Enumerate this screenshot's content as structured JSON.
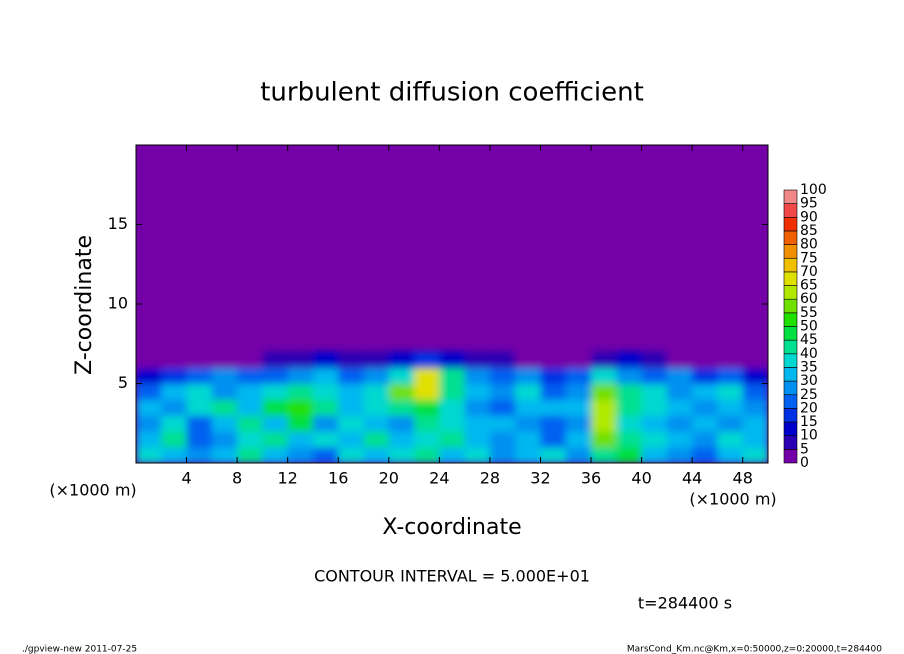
{
  "chart_data": {
    "type": "contour",
    "title": "turbulent diffusion coefficient",
    "xlabel": "X-coordinate",
    "ylabel": "Z-coordinate",
    "xunit": "(×1000 m)",
    "yunit": "(×1000 m)",
    "xlim": [
      0,
      50
    ],
    "ylim": [
      0,
      20
    ],
    "xticks": [
      4,
      8,
      12,
      16,
      20,
      24,
      28,
      32,
      36,
      40,
      44,
      48
    ],
    "yticks": [
      5,
      10,
      15
    ],
    "background": "#7400a8",
    "x": [
      1,
      3,
      5,
      7,
      9,
      11,
      13,
      15,
      17,
      19,
      21,
      23,
      25,
      27,
      29,
      31,
      33,
      35,
      37,
      39,
      41,
      43,
      45,
      47,
      49
    ],
    "z": [
      0.5,
      1.5,
      2.5,
      3.5,
      4.5,
      5.5,
      6.5
    ],
    "values": [
      [
        35,
        30,
        25,
        30,
        40,
        30,
        25,
        20,
        35,
        30,
        35,
        40,
        30,
        35,
        25,
        30,
        35,
        25,
        40,
        45,
        30,
        25,
        20,
        30,
        35
      ],
      [
        30,
        40,
        20,
        25,
        35,
        40,
        30,
        35,
        30,
        40,
        30,
        35,
        40,
        30,
        25,
        30,
        20,
        30,
        55,
        40,
        35,
        30,
        25,
        35,
        30
      ],
      [
        25,
        35,
        20,
        30,
        40,
        30,
        45,
        25,
        35,
        30,
        25,
        40,
        35,
        30,
        30,
        25,
        20,
        25,
        60,
        35,
        30,
        25,
        30,
        25,
        30
      ],
      [
        30,
        25,
        35,
        40,
        30,
        45,
        50,
        40,
        30,
        35,
        40,
        45,
        35,
        25,
        20,
        30,
        30,
        30,
        60,
        40,
        35,
        30,
        25,
        30,
        25
      ],
      [
        20,
        30,
        35,
        25,
        30,
        35,
        40,
        35,
        30,
        35,
        55,
        65,
        40,
        30,
        25,
        35,
        20,
        25,
        55,
        40,
        35,
        25,
        30,
        35,
        20
      ],
      [
        10,
        15,
        20,
        25,
        20,
        20,
        25,
        30,
        20,
        25,
        35,
        65,
        40,
        25,
        20,
        25,
        15,
        20,
        35,
        25,
        20,
        25,
        15,
        20,
        10
      ],
      [
        0,
        0,
        0,
        0,
        0,
        5,
        5,
        10,
        5,
        5,
        10,
        15,
        10,
        5,
        5,
        0,
        0,
        0,
        5,
        10,
        5,
        0,
        0,
        0,
        0
      ]
    ],
    "colorbar": {
      "levels": [
        0,
        5,
        10,
        15,
        20,
        25,
        30,
        35,
        40,
        45,
        50,
        55,
        60,
        65,
        70,
        75,
        80,
        85,
        90,
        95,
        100
      ],
      "colors": [
        "#7400a8",
        "#2a00b4",
        "#0000cc",
        "#0030e4",
        "#0060f0",
        "#0090f0",
        "#00b8f0",
        "#00d8d0",
        "#00e090",
        "#00e040",
        "#20e000",
        "#70e000",
        "#b0e800",
        "#e0e000",
        "#f0c000",
        "#f09000",
        "#f06000",
        "#f03000",
        "#f04848",
        "#f08888"
      ]
    },
    "annotations": [
      "CONTOUR INTERVAL = 5.000E+01",
      "t=284400 s"
    ],
    "footer_left": "./gpview-new  2011-07-25",
    "footer_right": "MarsCond_Km.nc@Km,x=0:50000,z=0:20000,t=284400"
  }
}
